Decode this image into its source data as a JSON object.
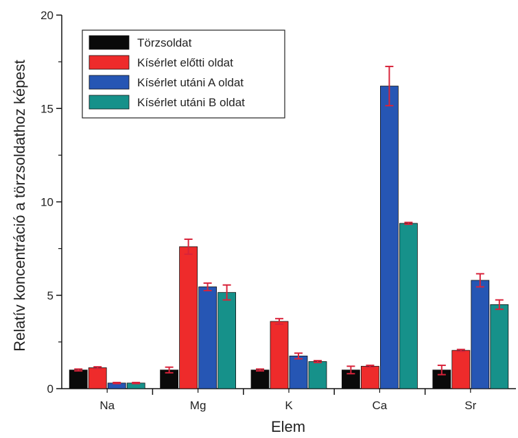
{
  "chart_data": {
    "type": "bar",
    "title": "",
    "xlabel": "Elem",
    "ylabel": "Relatív koncentráció a törzsoldathoz képest",
    "categories": [
      "Na",
      "Mg",
      "K",
      "Ca",
      "Sr"
    ],
    "ylim": [
      0,
      20
    ],
    "yticks": [
      0,
      5,
      10,
      15,
      20
    ],
    "grid": false,
    "legend_position": "top-left",
    "series": [
      {
        "name": "Törzsoldat",
        "color": "#0a0a0a",
        "values": [
          1.0,
          1.0,
          1.0,
          1.0,
          1.0
        ],
        "errors": [
          0.05,
          0.15,
          0.05,
          0.2,
          0.25
        ]
      },
      {
        "name": "Kísérlet előtti oldat",
        "color": "#ee2b2b",
        "values": [
          1.12,
          7.6,
          3.6,
          1.2,
          2.05
        ],
        "errors": [
          0.05,
          0.4,
          0.15,
          0.05,
          0.05
        ]
      },
      {
        "name": "Kísérlet utáni A oldat",
        "color": "#2656b4",
        "values": [
          0.3,
          5.45,
          1.75,
          16.2,
          5.8
        ],
        "errors": [
          0.03,
          0.2,
          0.15,
          1.05,
          0.35
        ]
      },
      {
        "name": "Kísérlet utáni B oldat",
        "color": "#16918a",
        "values": [
          0.3,
          5.15,
          1.45,
          8.85,
          4.5
        ],
        "errors": [
          0.03,
          0.4,
          0.05,
          0.05,
          0.25
        ]
      }
    ]
  }
}
